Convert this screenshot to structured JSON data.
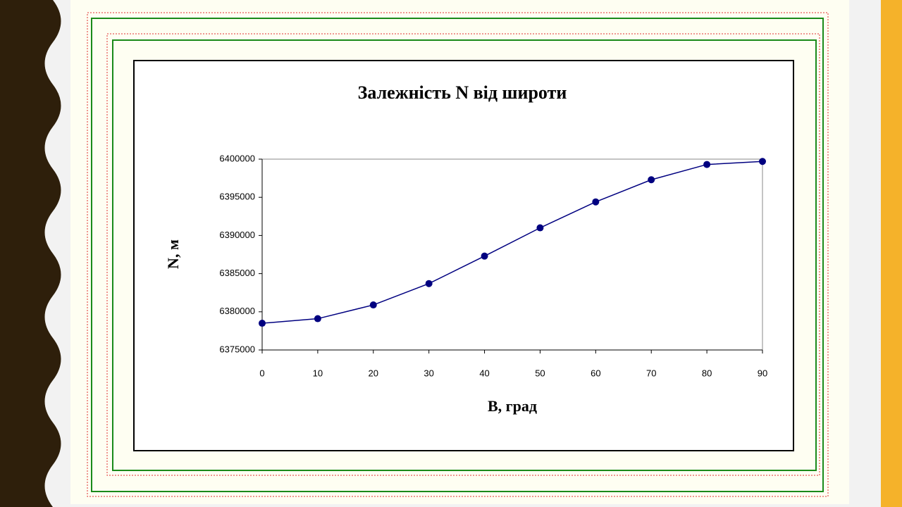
{
  "chart_data": {
    "type": "line",
    "title": "Залежність N від широти",
    "x_label": "B, град",
    "y_label": "N, м",
    "x": [
      0,
      10,
      20,
      30,
      40,
      50,
      60,
      70,
      80,
      90
    ],
    "series": [
      {
        "color": "#000080",
        "values": [
          6378500,
          6379100,
          6380900,
          6383700,
          6387300,
          6391000,
          6394400,
          6397300,
          6399300,
          6399700
        ]
      }
    ],
    "xlim": [
      0,
      90
    ],
    "xticks": [
      0,
      10,
      20,
      30,
      40,
      50,
      60,
      70,
      80,
      90
    ],
    "ylim": [
      6375000,
      6400000
    ],
    "yticks": [
      6375000,
      6380000,
      6385000,
      6390000,
      6395000,
      6400000
    ]
  }
}
